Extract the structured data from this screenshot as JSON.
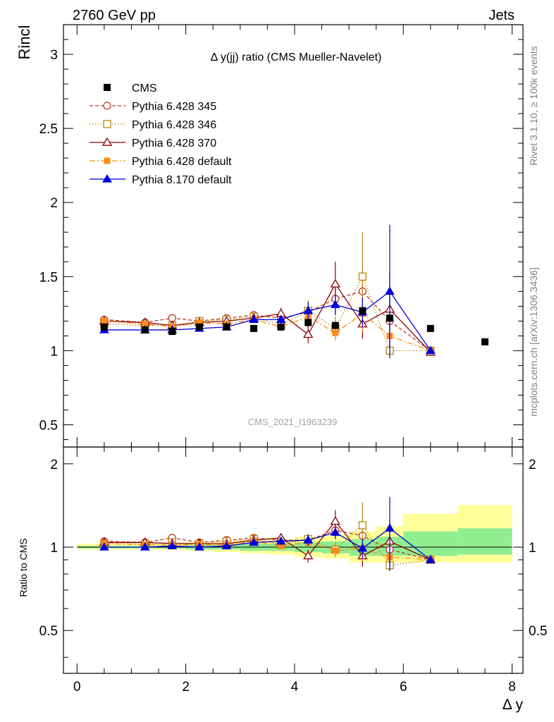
{
  "header": {
    "left_title": "2760 GeV pp",
    "right_title": "Jets",
    "y_axis_label": "Rincl",
    "plot_title": "Δ y(jj) ratio (CMS Mueller-Navelet)",
    "watermark": "CMS_2021_I1963239",
    "side_note_top": "Rivet 3.1.10, ≥ 100k events",
    "side_note_bottom": "mcplots.cern.ch [arXiv:1306.3436]",
    "ratio_y_label": "Ratio to CMS",
    "x_axis_label": "Δ y"
  },
  "colors": {
    "cms": "#000000",
    "p345": "#c0392b",
    "p346": "#b8860b",
    "p370": "#8b0000",
    "p6def": "#ff8c1a",
    "p8def": "#0000dd",
    "band_inner": "#90ee90",
    "band_outer": "#ffff99"
  },
  "chart_data": {
    "type": "scatter",
    "xlabel": "Δ y",
    "ylabel": "Rincl",
    "xlim": [
      -0.25,
      8.2
    ],
    "ylim_main": [
      0.35,
      3.2
    ],
    "ylim_ratio": [
      0.35,
      2.3
    ],
    "x_ticks": [
      0,
      2,
      4,
      6,
      8
    ],
    "y_ticks_main": [
      0.5,
      1,
      1.5,
      2,
      2.5,
      3
    ],
    "y_ticks_ratio": [
      0.5,
      1,
      2
    ],
    "legend_position": "top-left",
    "cms": {
      "name": "CMS",
      "x": [
        0.5,
        1.25,
        1.75,
        2.25,
        2.75,
        3.25,
        3.75,
        4.25,
        4.75,
        5.25,
        5.75,
        6.5,
        7.5
      ],
      "y": [
        1.16,
        1.14,
        1.13,
        1.16,
        1.16,
        1.15,
        1.16,
        1.19,
        1.17,
        1.27,
        1.22,
        1.15,
        1.06
      ]
    },
    "band": {
      "edges": [
        0,
        1,
        1.5,
        2,
        2.5,
        3,
        3.5,
        4,
        4.5,
        5,
        5.5,
        6,
        7,
        8
      ],
      "inner_low": [
        0.99,
        0.99,
        0.99,
        0.98,
        0.98,
        0.97,
        0.97,
        0.96,
        0.95,
        0.93,
        0.93,
        0.93,
        0.94
      ],
      "inner_high": [
        1.01,
        1.01,
        1.01,
        1.02,
        1.02,
        1.03,
        1.03,
        1.04,
        1.05,
        1.07,
        1.09,
        1.14,
        1.17
      ],
      "outer_low": [
        0.98,
        0.98,
        0.98,
        0.97,
        0.96,
        0.95,
        0.94,
        0.92,
        0.91,
        0.88,
        0.88,
        0.88,
        0.88
      ],
      "outer_high": [
        1.03,
        1.03,
        1.03,
        1.04,
        1.05,
        1.06,
        1.07,
        1.09,
        1.11,
        1.14,
        1.19,
        1.32,
        1.42
      ]
    },
    "series": [
      {
        "name": "Pythia 6.428 345",
        "key": "p345",
        "marker": "circle-open",
        "dash": "5,3",
        "x": [
          0.5,
          1.25,
          1.75,
          2.25,
          2.75,
          3.25,
          3.75,
          4.25,
          4.75,
          5.25,
          5.75,
          6.5
        ],
        "y": [
          1.21,
          1.19,
          1.22,
          1.2,
          1.22,
          1.24,
          1.22,
          1.26,
          1.35,
          1.4,
          1.2,
          1.0
        ],
        "err": [
          0.01,
          0.01,
          0.01,
          0.01,
          0.01,
          0.02,
          0.03,
          0.05,
          0.1,
          0.15,
          0.2,
          0.0
        ],
        "ratio": [
          1.05,
          1.04,
          1.08,
          1.04,
          1.06,
          1.08,
          1.06,
          1.06,
          1.15,
          1.1,
          0.98,
          0.9
        ],
        "ratio_err": [
          0.01,
          0.01,
          0.01,
          0.01,
          0.01,
          0.02,
          0.03,
          0.04,
          0.08,
          0.12,
          0.15,
          0.0
        ]
      },
      {
        "name": "Pythia 6.428 346",
        "key": "p346",
        "marker": "square-open",
        "dash": "1.5,2.5",
        "x": [
          0.5,
          1.25,
          1.75,
          2.25,
          2.75,
          3.25,
          3.75,
          4.25,
          4.75,
          5.25,
          5.75,
          6.5
        ],
        "y": [
          1.18,
          1.17,
          1.17,
          1.2,
          1.21,
          1.23,
          1.17,
          1.27,
          1.15,
          1.5,
          1.0,
          1.0
        ],
        "err": [
          0.01,
          0.01,
          0.01,
          0.01,
          0.01,
          0.02,
          0.03,
          0.07,
          0.08,
          0.3,
          0.05,
          0.0
        ],
        "ratio": [
          1.03,
          1.03,
          1.04,
          1.03,
          1.05,
          1.07,
          1.02,
          1.07,
          0.98,
          1.2,
          0.86,
          0.9
        ],
        "ratio_err": [
          0.01,
          0.01,
          0.01,
          0.01,
          0.01,
          0.02,
          0.03,
          0.05,
          0.06,
          0.25,
          0.04,
          0.0
        ]
      },
      {
        "name": "Pythia 6.428 370",
        "key": "p370",
        "marker": "triangle-open",
        "dash": "",
        "x": [
          0.5,
          1.25,
          1.75,
          2.25,
          2.75,
          3.25,
          3.75,
          4.25,
          4.75,
          5.25,
          5.75,
          6.5
        ],
        "y": [
          1.2,
          1.19,
          1.17,
          1.19,
          1.2,
          1.22,
          1.25,
          1.11,
          1.45,
          1.18,
          1.28,
          0.99
        ],
        "err": [
          0.01,
          0.01,
          0.01,
          0.01,
          0.01,
          0.02,
          0.04,
          0.06,
          0.15,
          0.1,
          0.25,
          0.0
        ],
        "ratio": [
          1.04,
          1.04,
          1.03,
          1.03,
          1.03,
          1.06,
          1.08,
          0.93,
          1.24,
          0.93,
          1.05,
          0.9
        ],
        "ratio_err": [
          0.01,
          0.01,
          0.01,
          0.01,
          0.01,
          0.02,
          0.03,
          0.05,
          0.12,
          0.08,
          0.2,
          0.0
        ]
      },
      {
        "name": "Pythia 6.428 default",
        "key": "p6def",
        "marker": "square-filled",
        "dash": "8,3,2,3",
        "x": [
          0.5,
          1.25,
          1.75,
          2.25,
          2.75,
          3.25,
          3.75,
          4.25,
          4.75,
          5.25,
          5.75,
          6.5
        ],
        "y": [
          1.2,
          1.18,
          1.16,
          1.19,
          1.18,
          1.21,
          1.16,
          1.23,
          1.12,
          1.25,
          1.1,
          1.0
        ],
        "err": [
          0.01,
          0.01,
          0.01,
          0.01,
          0.01,
          0.02,
          0.03,
          0.05,
          0.05,
          0.12,
          0.1,
          0.0
        ],
        "ratio": [
          1.03,
          1.02,
          1.02,
          1.02,
          1.02,
          1.05,
          1.01,
          1.04,
          0.97,
          0.99,
          0.92,
          0.9
        ],
        "ratio_err": [
          0.01,
          0.01,
          0.01,
          0.01,
          0.01,
          0.02,
          0.03,
          0.04,
          0.04,
          0.1,
          0.08,
          0.0
        ]
      },
      {
        "name": "Pythia 8.170 default",
        "key": "p8def",
        "marker": "triangle-filled",
        "dash": "",
        "x": [
          0.5,
          1.25,
          1.75,
          2.25,
          2.75,
          3.25,
          3.75,
          4.25,
          4.75,
          5.25,
          5.75,
          6.5
        ],
        "y": [
          1.14,
          1.14,
          1.14,
          1.15,
          1.16,
          1.21,
          1.21,
          1.27,
          1.31,
          1.26,
          1.4,
          1.0
        ],
        "err": [
          0.01,
          0.01,
          0.01,
          0.01,
          0.01,
          0.02,
          0.03,
          0.06,
          0.07,
          0.1,
          0.45,
          0.0
        ],
        "ratio": [
          1.0,
          1.0,
          1.01,
          1.0,
          1.01,
          1.04,
          1.05,
          1.06,
          1.13,
          0.99,
          1.17,
          0.9
        ],
        "ratio_err": [
          0.01,
          0.01,
          0.01,
          0.01,
          0.01,
          0.02,
          0.03,
          0.05,
          0.06,
          0.08,
          0.35,
          0.0
        ]
      }
    ]
  }
}
